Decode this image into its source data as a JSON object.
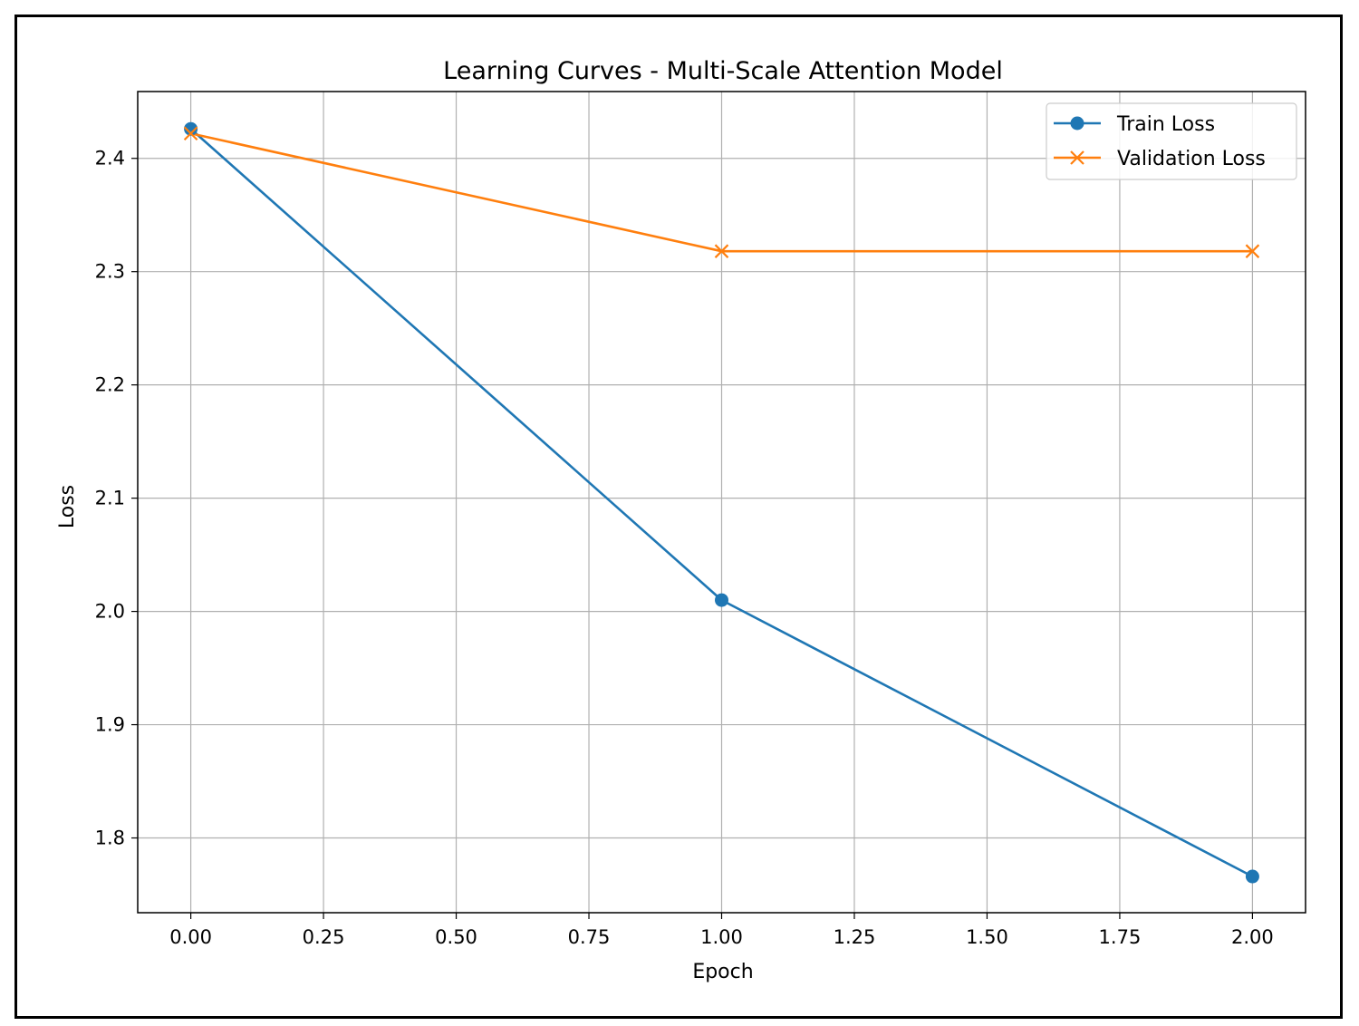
{
  "chart_data": {
    "type": "line",
    "title": "Learning Curves - Multi-Scale Attention Model",
    "xlabel": "Epoch",
    "ylabel": "Loss",
    "xlim": [
      -0.1,
      2.1
    ],
    "ylim": [
      1.734,
      2.459
    ],
    "xticks": [
      0.0,
      0.25,
      0.5,
      0.75,
      1.0,
      1.25,
      1.5,
      1.75,
      2.0
    ],
    "xtick_labels": [
      "0.00",
      "0.25",
      "0.50",
      "0.75",
      "1.00",
      "1.25",
      "1.50",
      "1.75",
      "2.00"
    ],
    "yticks": [
      1.8,
      1.9,
      2.0,
      2.1,
      2.2,
      2.3,
      2.4
    ],
    "ytick_labels": [
      "1.8",
      "1.9",
      "2.0",
      "2.1",
      "2.2",
      "2.3",
      "2.4"
    ],
    "grid": true,
    "legend_position": "top-right",
    "series": [
      {
        "name": "Train Loss",
        "marker": "circle",
        "color": "#1f77b4",
        "x": [
          0,
          1,
          2
        ],
        "y": [
          2.426,
          2.01,
          1.766
        ]
      },
      {
        "name": "Validation Loss",
        "marker": "x",
        "color": "#ff7f0e",
        "x": [
          0,
          1,
          2
        ],
        "y": [
          2.422,
          2.318,
          2.318
        ]
      }
    ]
  }
}
